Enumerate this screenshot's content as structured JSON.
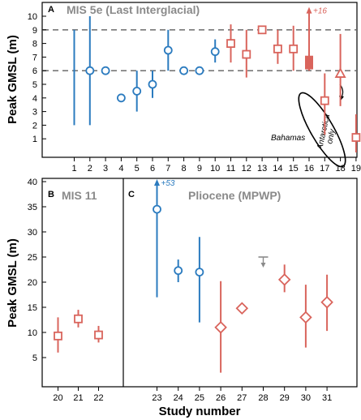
{
  "colors": {
    "blue": "#2b7bbf",
    "red": "#d9645c",
    "gray": "#8a8a8a",
    "dash": "#777777"
  },
  "labels": {
    "ylabel_top": "Peak GMSL (m)",
    "ylabel_bottom": "Peak GMSL (m)",
    "xlabel": "Study number",
    "panelA_letter": "A",
    "panelA_title": "MIS 5e (Last Interglacial)",
    "panelB_letter": "B",
    "panelB_title": "MIS 11",
    "panelC_letter": "C",
    "panelC_title": "Pliocene (MPWP)",
    "bahamas": "Bahamas",
    "antarctica_1": "Antarctica",
    "antarctica_2": "only",
    "arrow16": "+16",
    "arrow23": "+53"
  },
  "chart_data": [
    {
      "type": "scatter",
      "panel": "A",
      "title": "MIS 5e (Last Interglacial)",
      "ylabel": "Peak GMSL (m)",
      "xlim": [
        0.5,
        19.5
      ],
      "ylim": [
        0,
        10.5
      ],
      "yticks": [
        1,
        2,
        3,
        4,
        5,
        6,
        7,
        8,
        9,
        10
      ],
      "xticks": [
        1,
        2,
        3,
        4,
        5,
        6,
        7,
        8,
        9,
        10,
        11,
        12,
        13,
        14,
        15,
        16,
        17,
        18,
        19
      ],
      "reference_lines": [
        6,
        9
      ],
      "points": [
        {
          "x": 1,
          "y": null,
          "low": 2,
          "high": 9,
          "color": "blue",
          "marker": "none"
        },
        {
          "x": 2,
          "y": 6,
          "low": 2,
          "high": 10,
          "color": "blue",
          "marker": "circle"
        },
        {
          "x": 3,
          "y": 6,
          "low": null,
          "high": null,
          "color": "blue",
          "marker": "circle"
        },
        {
          "x": 4,
          "y": 4,
          "low": null,
          "high": null,
          "color": "blue",
          "marker": "circle"
        },
        {
          "x": 5,
          "y": 4.5,
          "low": 3,
          "high": 6,
          "color": "blue",
          "marker": "circle"
        },
        {
          "x": 6,
          "y": 5,
          "low": 4,
          "high": 6,
          "color": "blue",
          "marker": "circle"
        },
        {
          "x": 7,
          "y": 7.5,
          "low": 6,
          "high": 9,
          "color": "blue",
          "marker": "circle"
        },
        {
          "x": 8,
          "y": 6,
          "low": null,
          "high": null,
          "color": "blue",
          "marker": "circle"
        },
        {
          "x": 9,
          "y": 6,
          "low": null,
          "high": null,
          "color": "blue",
          "marker": "circle"
        },
        {
          "x": 10,
          "y": 7.4,
          "low": 6.6,
          "high": 8.3,
          "color": "blue",
          "marker": "circle"
        },
        {
          "x": 11,
          "y": 8,
          "low": 6.6,
          "high": 9.4,
          "color": "red",
          "marker": "square"
        },
        {
          "x": 12,
          "y": 7.2,
          "low": 5.5,
          "high": 9,
          "color": "red",
          "marker": "square"
        },
        {
          "x": 13,
          "y": 9,
          "low": null,
          "high": null,
          "color": "red",
          "marker": "square"
        },
        {
          "x": 14,
          "y": 7.6,
          "low": 6.5,
          "high": 9,
          "color": "red",
          "marker": "square"
        },
        {
          "x": 15,
          "y": 7.6,
          "low": 6,
          "high": 9.3,
          "color": "red",
          "marker": "square"
        },
        {
          "x": 16,
          "y": 6.6,
          "low": 6,
          "high": 10.5,
          "color": "red",
          "marker": "filled-rect",
          "rect_low": 6.1,
          "rect_high": 7.1,
          "arrow_up": true,
          "arrow_label": "+16"
        },
        {
          "x": 17,
          "y": 3.8,
          "low": 1.3,
          "high": 5.8,
          "color": "red",
          "marker": "square"
        },
        {
          "x": 18,
          "y": 5.8,
          "low": 3.4,
          "high": 8.7,
          "color": "red",
          "marker": "triangle"
        },
        {
          "x": 19,
          "y": 1.1,
          "low": 0,
          "high": 2.8,
          "color": "red",
          "marker": "square"
        }
      ]
    },
    {
      "type": "scatter",
      "panel": "B",
      "title": "MIS 11",
      "ylabel": "Peak GMSL (m)",
      "ylim": [
        0,
        40
      ],
      "yticks": [
        5,
        10,
        15,
        20,
        25,
        30,
        35,
        40
      ],
      "xticks": [
        20,
        21,
        22
      ],
      "points": [
        {
          "x": 20,
          "y": 9.3,
          "low": 6,
          "high": 13,
          "color": "red",
          "marker": "square"
        },
        {
          "x": 21,
          "y": 12.7,
          "low": 11,
          "high": 14.5,
          "color": "red",
          "marker": "square"
        },
        {
          "x": 22,
          "y": 9.5,
          "low": 8,
          "high": 11.3,
          "color": "red",
          "marker": "square"
        }
      ]
    },
    {
      "type": "scatter",
      "panel": "C",
      "title": "Pliocene (MPWP)",
      "ylim": [
        0,
        40
      ],
      "xticks": [
        23,
        24,
        25,
        26,
        27,
        28,
        29,
        30,
        31
      ],
      "points": [
        {
          "x": 23,
          "y": 34.5,
          "low": 17,
          "high": 40,
          "color": "blue",
          "marker": "circle",
          "arrow_up": true,
          "arrow_label": "+53"
        },
        {
          "x": 24,
          "y": 22.3,
          "low": 20,
          "high": 24.5,
          "color": "blue",
          "marker": "circle"
        },
        {
          "x": 25,
          "y": 22,
          "low": 12,
          "high": 29,
          "color": "blue",
          "marker": "circle"
        },
        {
          "x": 26,
          "y": 11,
          "low": 2,
          "high": 20.2,
          "color": "red",
          "marker": "diamond"
        },
        {
          "x": 27,
          "y": 14.8,
          "low": null,
          "high": null,
          "color": "red",
          "marker": "diamond"
        },
        {
          "x": 28,
          "y": 25,
          "low": null,
          "high": null,
          "color": "gray",
          "marker": "upper-limit"
        },
        {
          "x": 29,
          "y": 20.5,
          "low": 18,
          "high": 23.5,
          "color": "red",
          "marker": "diamond"
        },
        {
          "x": 30,
          "y": 13,
          "low": 7,
          "high": 19.5,
          "color": "red",
          "marker": "diamond"
        },
        {
          "x": 31,
          "y": 16,
          "low": 10.3,
          "high": 21.5,
          "color": "red",
          "marker": "diamond"
        }
      ]
    }
  ]
}
